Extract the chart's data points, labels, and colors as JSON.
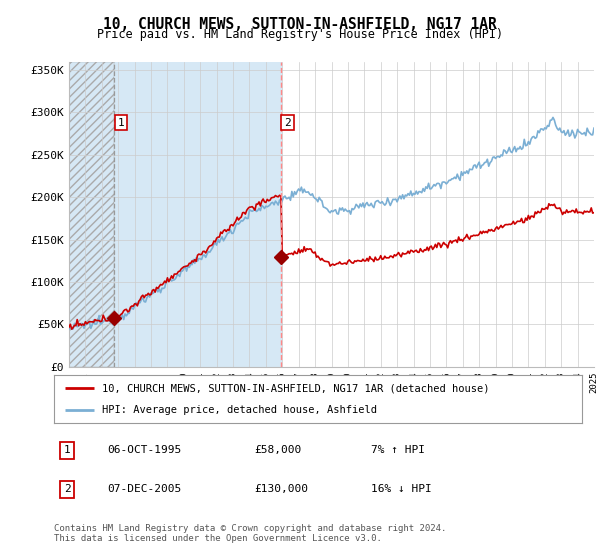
{
  "title": "10, CHURCH MEWS, SUTTON-IN-ASHFIELD, NG17 1AR",
  "subtitle": "Price paid vs. HM Land Registry's House Price Index (HPI)",
  "ylabel_ticks": [
    "£0",
    "£50K",
    "£100K",
    "£150K",
    "£200K",
    "£250K",
    "£300K",
    "£350K"
  ],
  "ytick_vals": [
    0,
    50000,
    100000,
    150000,
    200000,
    250000,
    300000,
    350000
  ],
  "ylim": [
    0,
    360000
  ],
  "xlim_start": 1993,
  "xlim_end": 2025,
  "sale1": {
    "year": 1995.76,
    "price": 58000,
    "label": "1"
  },
  "sale2": {
    "year": 2005.92,
    "price": 130000,
    "label": "2"
  },
  "legend_line1": "10, CHURCH MEWS, SUTTON-IN-ASHFIELD, NG17 1AR (detached house)",
  "legend_line2": "HPI: Average price, detached house, Ashfield",
  "table": [
    {
      "num": "1",
      "date": "06-OCT-1995",
      "price": "£58,000",
      "hpi": "7% ↑ HPI"
    },
    {
      "num": "2",
      "date": "07-DEC-2005",
      "price": "£130,000",
      "hpi": "16% ↓ HPI"
    }
  ],
  "footnote": "Contains HM Land Registry data © Crown copyright and database right 2024.\nThis data is licensed under the Open Government Licence v3.0.",
  "hpi_color": "#7bafd4",
  "price_color": "#cc0000",
  "dot_color": "#990000",
  "vline1_color": "#aaaaaa",
  "vline2_color": "#ff8888",
  "shade_color": "#d6e8f5",
  "background_color": "#ffffff",
  "grid_color": "#cccccc"
}
